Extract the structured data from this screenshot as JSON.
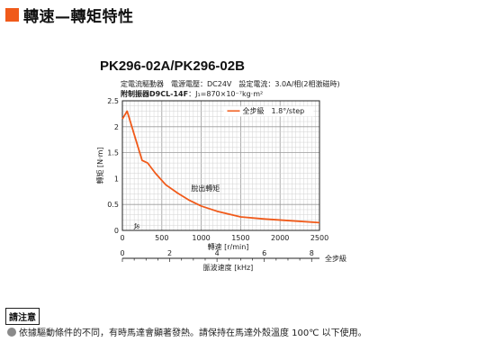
{
  "header": {
    "title": "轉速—轉矩特性",
    "accent_color": "#f05a1a"
  },
  "conditions": {
    "line1": "定電流驅動器　電源電壓：DC24V　設定電流：3.0A/相(2相激磁時)",
    "line2_label": "附制振器D9CL-14F",
    "line2_value": "：J₁=870×10⁻⁷kg·m²"
  },
  "chart_data": {
    "type": "line",
    "title": "PK296-02A/PK296-02B",
    "xlabel": "轉速 [r/min]",
    "ylabel": "轉矩 [N·m]",
    "xlim": [
      0,
      2500
    ],
    "ylim": [
      0,
      2.5
    ],
    "xticks": [
      0,
      500,
      1000,
      1500,
      2000,
      2500
    ],
    "yticks": [
      0,
      0.5,
      1,
      1.5,
      2,
      2.5
    ],
    "grid": true,
    "line_color": "#f05a1a",
    "legend": {
      "label": "全步級　1.8°/step",
      "placement": "top-right"
    },
    "annotations": {
      "pullout": "脫出轉矩",
      "fs": "fs"
    },
    "fs_value": 0.3,
    "series": [
      {
        "name": "脫出轉矩",
        "x": [
          0,
          60,
          150,
          250,
          320,
          420,
          550,
          700,
          850,
          1000,
          1200,
          1500,
          1800,
          2100,
          2500
        ],
        "y": [
          2.15,
          2.3,
          1.85,
          1.35,
          1.3,
          1.1,
          0.88,
          0.72,
          0.58,
          0.47,
          0.37,
          0.26,
          0.22,
          0.19,
          0.15
        ]
      }
    ],
    "secondary_axis": {
      "label": "脈波速度 [kHz]",
      "unit_suffix": "全步級",
      "range": [
        0,
        8.333
      ],
      "ticks": [
        0,
        2,
        4,
        6,
        8
      ]
    }
  },
  "notice": {
    "label": "請注意",
    "text": "依據驅動條件的不同，有時馬達會顯著發熱。請保持在馬達外殼溫度 100℃ 以下使用。"
  }
}
